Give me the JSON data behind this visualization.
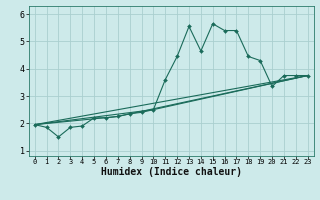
{
  "bg_color": "#cdeaea",
  "grid_color": "#aacfcf",
  "line_color": "#1a6b5a",
  "xlabel": "Humidex (Indice chaleur)",
  "xlabel_fontsize": 7,
  "xlim": [
    -0.5,
    23.5
  ],
  "ylim": [
    0.8,
    6.3
  ],
  "yticks": [
    1,
    2,
    3,
    4,
    5,
    6
  ],
  "xticks": [
    0,
    1,
    2,
    3,
    4,
    5,
    6,
    7,
    8,
    9,
    10,
    11,
    12,
    13,
    14,
    15,
    16,
    17,
    18,
    19,
    20,
    21,
    22,
    23
  ],
  "series1_x": [
    0,
    1,
    2,
    3,
    4,
    5,
    6,
    7,
    8,
    9,
    10,
    11,
    12,
    13,
    14,
    15,
    16,
    17,
    18,
    19,
    20,
    21,
    22,
    23
  ],
  "series1_y": [
    1.95,
    1.85,
    1.5,
    1.85,
    1.9,
    2.2,
    2.2,
    2.25,
    2.35,
    2.4,
    2.5,
    3.6,
    4.45,
    5.55,
    4.65,
    5.65,
    5.4,
    5.4,
    4.45,
    4.3,
    3.35,
    3.75,
    3.75,
    3.75
  ],
  "series2_x": [
    0,
    23
  ],
  "series2_y": [
    1.95,
    3.75
  ],
  "series3_x": [
    0,
    7,
    23
  ],
  "series3_y": [
    1.95,
    2.25,
    3.75
  ],
  "series4_x": [
    0,
    10,
    23
  ],
  "series4_y": [
    1.95,
    2.5,
    3.75
  ],
  "marker": "D",
  "marker_size": 2.0
}
